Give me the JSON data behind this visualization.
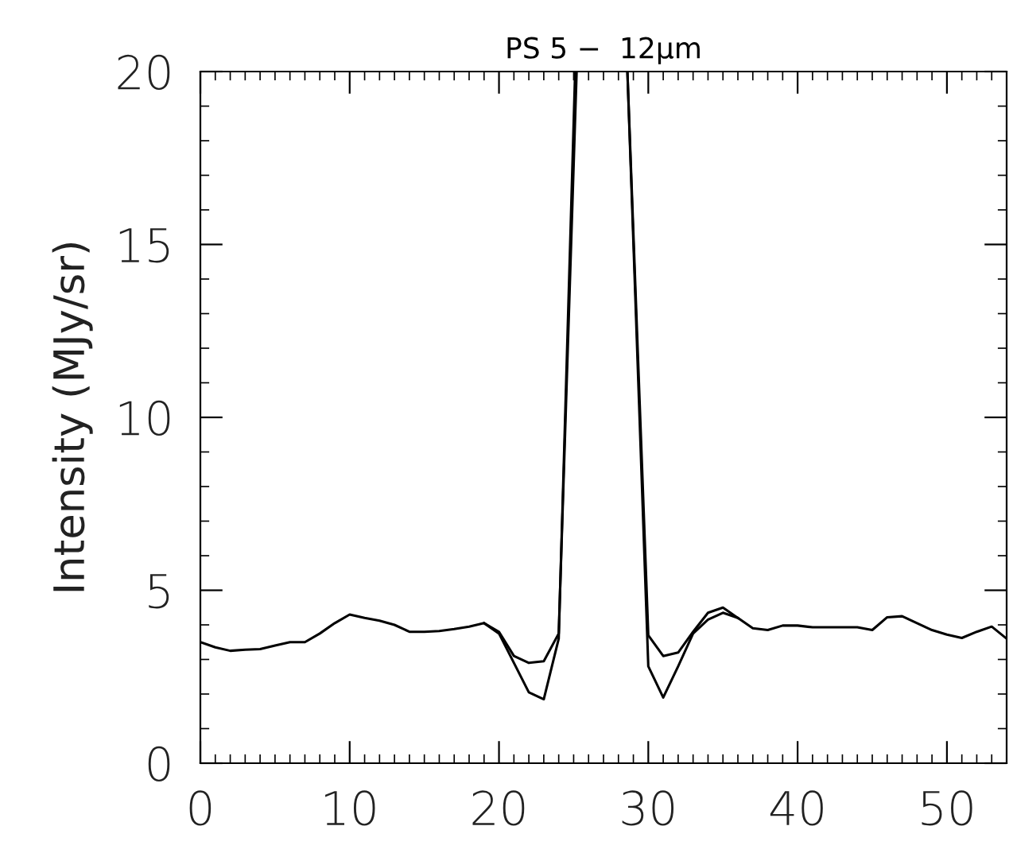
{
  "chart_data": {
    "type": "line",
    "title": "PS 5 −  12μm",
    "ylabel": "Intensity (MJy/sr)",
    "xlim": [
      0,
      54
    ],
    "ylim": [
      0,
      20
    ],
    "xticks": [
      0,
      10,
      20,
      30,
      40,
      50
    ],
    "yticks": [
      0,
      5,
      10,
      15,
      20
    ],
    "grid": false,
    "legend": false,
    "marker": "none",
    "line_style": "solid",
    "series": [
      {
        "color": "#000000",
        "x": [
          0,
          1,
          2,
          3,
          4,
          5,
          6,
          7,
          8,
          9,
          10,
          11,
          12,
          13,
          14,
          15,
          16,
          17,
          18,
          19,
          20,
          21,
          22,
          23,
          24,
          25.2,
          27,
          28.6,
          30,
          31,
          32,
          33,
          34,
          35,
          36,
          37,
          38,
          39,
          40,
          41,
          42,
          43,
          44,
          45,
          46,
          47,
          48,
          49,
          50,
          51,
          52,
          53,
          54
        ],
        "values": [
          3.5,
          3.35,
          3.25,
          3.28,
          3.3,
          3.4,
          3.5,
          3.5,
          3.75,
          4.05,
          4.3,
          4.2,
          4.12,
          4.0,
          3.8,
          3.8,
          3.82,
          3.88,
          3.95,
          4.05,
          3.8,
          3.1,
          2.9,
          2.95,
          3.75,
          20,
          null,
          20,
          2.8,
          1.9,
          2.8,
          3.75,
          4.15,
          4.35,
          4.2,
          3.9,
          3.85,
          3.98,
          3.98,
          3.93,
          3.93,
          3.93,
          3.93,
          3.85,
          4.22,
          4.25,
          4.05,
          3.85,
          3.72,
          3.62,
          3.8,
          3.95,
          3.6
        ]
      },
      {
        "color": "#000000",
        "x": [
          19,
          20,
          21,
          22,
          23,
          24,
          25.1,
          27,
          28.6,
          30,
          31,
          32,
          33,
          34,
          35,
          36
        ],
        "values": [
          4.05,
          3.75,
          2.9,
          2.05,
          1.85,
          3.6,
          20,
          null,
          20,
          3.7,
          3.1,
          3.2,
          3.8,
          4.35,
          4.5,
          4.2
        ]
      }
    ]
  }
}
